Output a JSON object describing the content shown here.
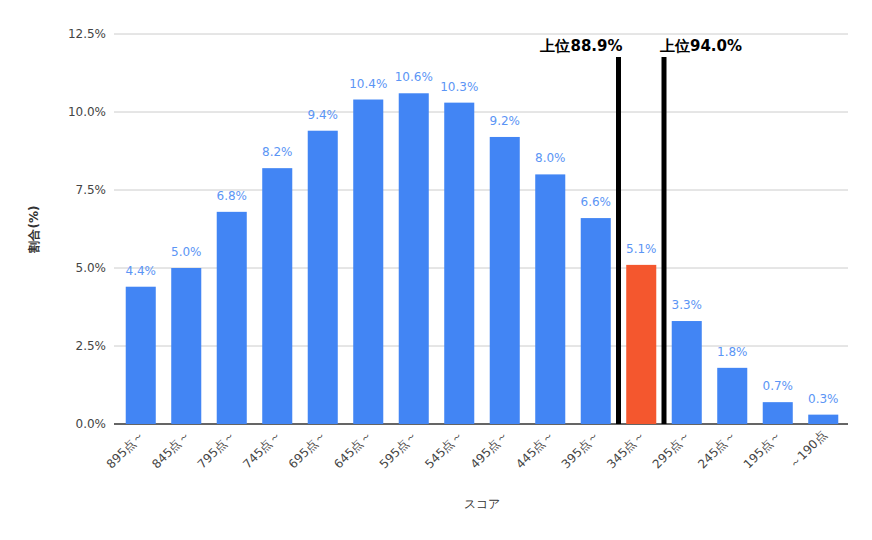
{
  "chart_data": {
    "type": "bar",
    "categories": [
      "895点～",
      "845点～",
      "795点～",
      "745点～",
      "695点～",
      "645点～",
      "595点～",
      "545点～",
      "495点～",
      "445点～",
      "395点～",
      "345点～",
      "295点～",
      "245点～",
      "195点～",
      "～190点"
    ],
    "values": [
      4.4,
      5.0,
      6.8,
      8.2,
      9.4,
      10.4,
      10.6,
      10.3,
      9.2,
      8.0,
      6.6,
      5.1,
      3.3,
      1.8,
      0.7,
      0.3
    ],
    "value_labels": [
      "4.4%",
      "5.0%",
      "6.8%",
      "8.2%",
      "9.4%",
      "10.4%",
      "10.6%",
      "10.3%",
      "9.2%",
      "8.0%",
      "6.6%",
      "5.1%",
      "3.3%",
      "1.8%",
      "0.7%",
      "0.3%"
    ],
    "colors": [
      "#4285f4",
      "#4285f4",
      "#4285f4",
      "#4285f4",
      "#4285f4",
      "#4285f4",
      "#4285f4",
      "#4285f4",
      "#4285f4",
      "#4285f4",
      "#4285f4",
      "#f4572e",
      "#4285f4",
      "#4285f4",
      "#4285f4",
      "#4285f4"
    ],
    "x_label": "スコア",
    "y_label": "割合(%)",
    "annotations": [
      "上位88.9%",
      "上位94.0%"
    ],
    "ylim": [
      0,
      12.5
    ],
    "yticks": [
      {
        "value": 0,
        "label": "0.0%"
      },
      {
        "value": 2.5,
        "label": "2.5%"
      },
      {
        "value": 5,
        "label": "5.0%"
      },
      {
        "value": 7.5,
        "label": "7.5%"
      },
      {
        "value": 10,
        "label": "10.0%"
      },
      {
        "value": 12.5,
        "label": "12.5%"
      }
    ],
    "grid": true,
    "data_labels": true
  }
}
